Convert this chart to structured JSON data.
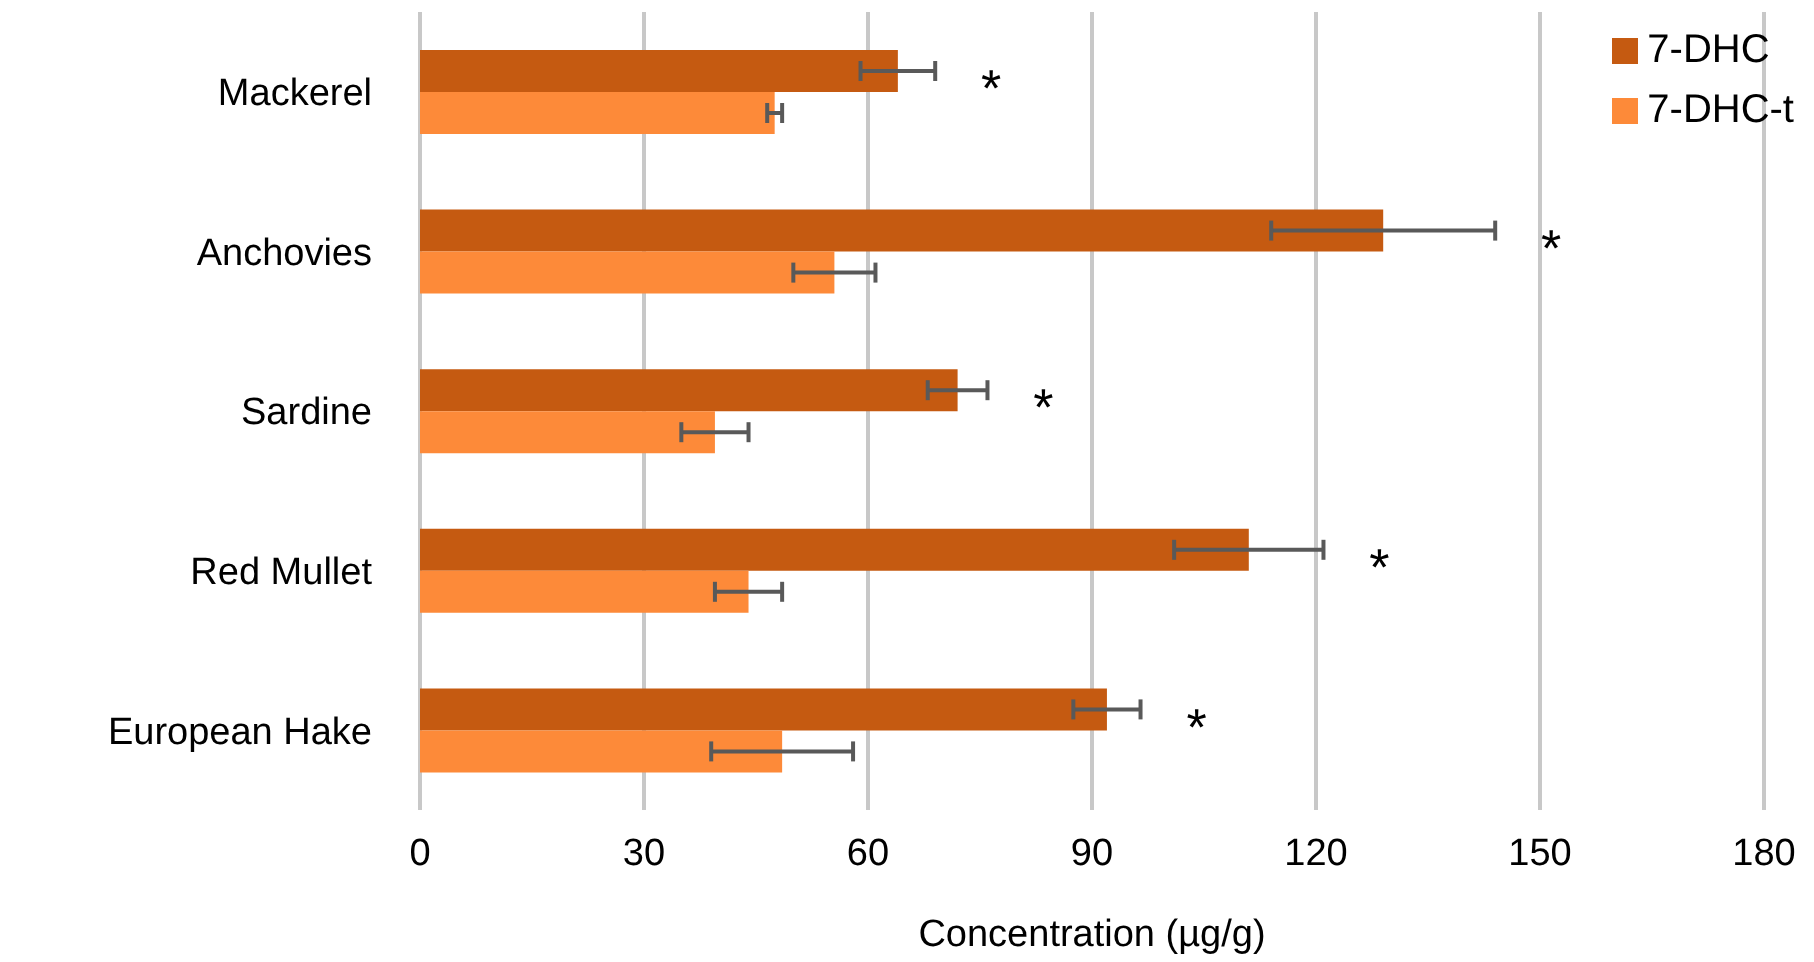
{
  "chart_data": {
    "type": "bar",
    "orientation": "horizontal",
    "xlabel": "Concentration (µg/g)",
    "categories": [
      "Mackerel",
      "Anchovies",
      "Sardine",
      "Red Mullet",
      "European Hake"
    ],
    "series": [
      {
        "name": "7-DHC",
        "color": "#c55a11",
        "values": [
          64,
          129,
          72,
          111,
          92
        ],
        "errors": [
          5,
          15,
          4,
          10,
          4.5
        ]
      },
      {
        "name": "7-DHC-t",
        "color": "#fd8a39",
        "values": [
          47.5,
          55.5,
          39.5,
          44,
          48.5
        ],
        "errors": [
          1,
          5.5,
          4.5,
          4.5,
          9.5
        ]
      }
    ],
    "xlim": [
      0,
      180
    ],
    "xticks": [
      0,
      30,
      60,
      90,
      120,
      150,
      180
    ],
    "grid": "x",
    "legend": "top right",
    "annotations": [
      "*",
      "*",
      "*",
      "*",
      "*"
    ]
  }
}
